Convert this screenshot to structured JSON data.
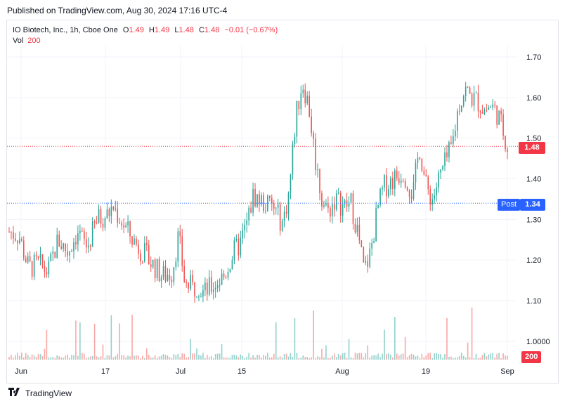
{
  "published": "Published on TradingView.com, Aug 30, 2024 17:16 UTC-4",
  "legend": {
    "symbol": "IO Biotech, Inc., 1h, Cboe One",
    "o_label": "O",
    "o_value": "1.49",
    "h_label": "H",
    "h_value": "1.49",
    "l_label": "L",
    "l_value": "1.48",
    "c_label": "C",
    "c_value": "1.48",
    "change": "−0.01 (−0.67%)",
    "vol_label": "Vol",
    "vol_value": "200"
  },
  "badges": {
    "last_price": "1.48",
    "post_label": "Post",
    "post_price": "1.34",
    "volume": "200"
  },
  "footer": {
    "brand": "TradingView"
  },
  "colors": {
    "up": "#26a69a",
    "down": "#ef5350",
    "last_line": "#f23645",
    "post_line": "#2962ff"
  },
  "chart_data": {
    "type": "candlestick",
    "price_axis": {
      "ticks": [
        "1.70",
        "1.60",
        "1.50",
        "1.40",
        "1.30",
        "1.20",
        "1.10",
        "1.0000"
      ],
      "range": [
        0.99,
        1.73
      ]
    },
    "x_ticks": [
      "Jun",
      "17",
      "Jul",
      "15",
      "Aug",
      "19",
      "Sep"
    ],
    "last_price": 1.48,
    "post_price": 1.34,
    "close_path": [
      [
        0,
        1.27
      ],
      [
        3,
        1.26
      ],
      [
        6,
        1.18
      ],
      [
        9,
        1.19
      ],
      [
        12,
        1.17
      ],
      [
        15,
        1.25
      ],
      [
        18,
        1.22
      ],
      [
        21,
        1.27
      ],
      [
        24,
        1.23
      ],
      [
        27,
        1.3
      ],
      [
        30,
        1.31
      ],
      [
        32,
        1.33
      ],
      [
        35,
        1.29
      ],
      [
        38,
        1.25
      ],
      [
        41,
        1.22
      ],
      [
        44,
        1.19
      ],
      [
        47,
        1.16
      ],
      [
        50,
        1.17
      ],
      [
        52,
        1.26
      ],
      [
        54,
        1.14
      ],
      [
        57,
        1.13
      ],
      [
        60,
        1.12
      ],
      [
        63,
        1.14
      ],
      [
        66,
        1.16
      ],
      [
        69,
        1.22
      ],
      [
        71,
        1.24
      ],
      [
        73,
        1.29
      ],
      [
        75,
        1.36
      ],
      [
        78,
        1.34
      ],
      [
        81,
        1.33
      ],
      [
        84,
        1.29
      ],
      [
        86,
        1.37
      ],
      [
        88,
        1.55
      ],
      [
        90,
        1.64
      ],
      [
        92,
        1.58
      ],
      [
        94,
        1.45
      ],
      [
        96,
        1.35
      ],
      [
        98,
        1.32
      ],
      [
        100,
        1.35
      ],
      [
        103,
        1.33
      ],
      [
        105,
        1.34
      ],
      [
        107,
        1.27
      ],
      [
        109,
        1.17
      ],
      [
        111,
        1.22
      ],
      [
        113,
        1.32
      ],
      [
        115,
        1.38
      ],
      [
        118,
        1.4
      ],
      [
        121,
        1.42
      ],
      [
        124,
        1.36
      ],
      [
        126,
        1.48
      ],
      [
        128,
        1.38
      ],
      [
        130,
        1.35
      ],
      [
        132,
        1.4
      ],
      [
        134,
        1.44
      ],
      [
        136,
        1.48
      ],
      [
        138,
        1.58
      ],
      [
        140,
        1.62
      ],
      [
        142,
        1.6
      ],
      [
        144,
        1.59
      ],
      [
        146,
        1.57
      ],
      [
        148,
        1.58
      ],
      [
        150,
        1.56
      ],
      [
        152,
        1.51
      ],
      [
        153,
        1.48
      ]
    ],
    "volume_axis": {
      "max": 200
    }
  }
}
